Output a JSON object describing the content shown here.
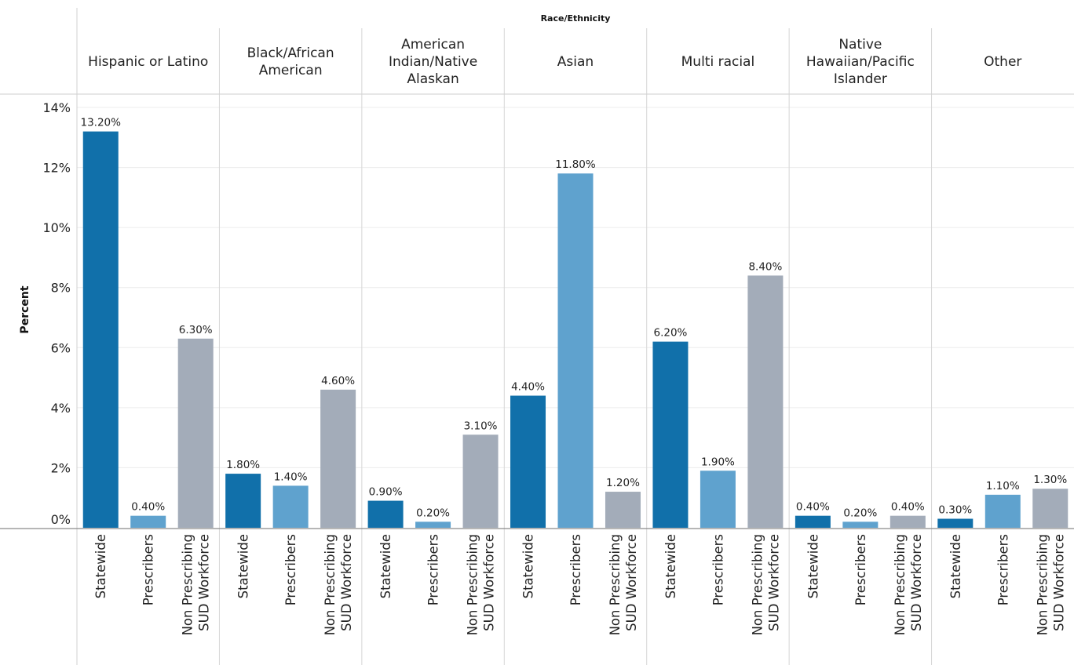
{
  "chart_data": {
    "type": "bar",
    "title": "",
    "header": "Race/Ethnicity",
    "ylabel": "Percent",
    "xlabel": "",
    "ylim": [
      0,
      14
    ],
    "yticks": [
      0,
      2,
      4,
      6,
      8,
      10,
      12,
      14
    ],
    "ytick_labels": [
      "0%",
      "2%",
      "4%",
      "6%",
      "8%",
      "10%",
      "12%",
      "14%"
    ],
    "grid": true,
    "categories": [
      "Statewide",
      "Prescribers",
      "Non Prescribing SUD Workforce"
    ],
    "category_lines": [
      [
        "Statewide"
      ],
      [
        "Prescribers"
      ],
      [
        "Non Prescribing",
        "SUD Workforce"
      ]
    ],
    "colors": {
      "Statewide": "#1170aa",
      "Prescribers": "#5fa2ce",
      "Non Prescribing SUD Workforce": "#a3acb9"
    },
    "groups": [
      {
        "name": "Hispanic or Latino",
        "name_lines": [
          "Hispanic or Latino"
        ],
        "values": [
          13.2,
          0.4,
          6.3
        ],
        "labels": [
          "13.20%",
          "0.40%",
          "6.30%"
        ]
      },
      {
        "name": "Black/African American",
        "name_lines": [
          "Black/African",
          "American"
        ],
        "values": [
          1.8,
          1.4,
          4.6
        ],
        "labels": [
          "1.80%",
          "1.40%",
          "4.60%"
        ]
      },
      {
        "name": "American Indian/Native Alaskan",
        "name_lines": [
          "American",
          "Indian/Native",
          "Alaskan"
        ],
        "values": [
          0.9,
          0.2,
          3.1
        ],
        "labels": [
          "0.90%",
          "0.20%",
          "3.10%"
        ]
      },
      {
        "name": "Asian",
        "name_lines": [
          "Asian"
        ],
        "values": [
          4.4,
          11.8,
          1.2
        ],
        "labels": [
          "4.40%",
          "11.80%",
          "1.20%"
        ]
      },
      {
        "name": "Multi racial",
        "name_lines": [
          "Multi racial"
        ],
        "values": [
          6.2,
          1.9,
          8.4
        ],
        "labels": [
          "6.20%",
          "1.90%",
          "8.40%"
        ]
      },
      {
        "name": "Native Hawaiian/Pacific Islander",
        "name_lines": [
          "Native",
          "Hawaiian/Pacific",
          "Islander"
        ],
        "values": [
          0.4,
          0.2,
          0.4
        ],
        "labels": [
          "0.40%",
          "0.20%",
          "0.40%"
        ]
      },
      {
        "name": "Other",
        "name_lines": [
          "Other"
        ],
        "values": [
          0.3,
          1.1,
          1.3
        ],
        "labels": [
          "0.30%",
          "1.10%",
          "1.30%"
        ]
      }
    ]
  }
}
